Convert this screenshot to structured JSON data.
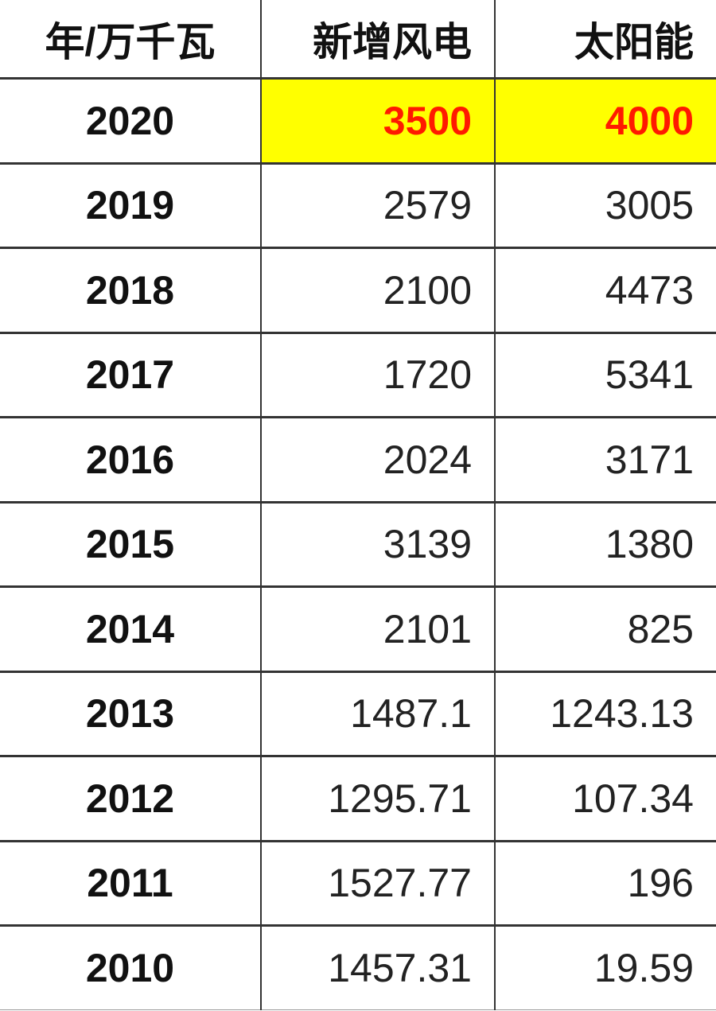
{
  "table": {
    "headers": [
      "年/万千瓦",
      "新增风电",
      "太阳能"
    ],
    "highlight_color": "#ffff00",
    "highlight_text_color": "#ff1a00",
    "rows": [
      [
        "2020",
        "3500",
        "4000"
      ],
      [
        "2019",
        "2579",
        "3005"
      ],
      [
        "2018",
        "2100",
        "4473"
      ],
      [
        "2017",
        "1720",
        "5341"
      ],
      [
        "2016",
        "2024",
        "3171"
      ],
      [
        "2015",
        "3139",
        "1380"
      ],
      [
        "2014",
        "2101",
        "825"
      ],
      [
        "2013",
        "1487.1",
        "1243.13"
      ],
      [
        "2012",
        "1295.71",
        "107.34"
      ],
      [
        "2011",
        "1527.77",
        "196"
      ],
      [
        "2010",
        "1457.31",
        "19.59"
      ]
    ]
  }
}
